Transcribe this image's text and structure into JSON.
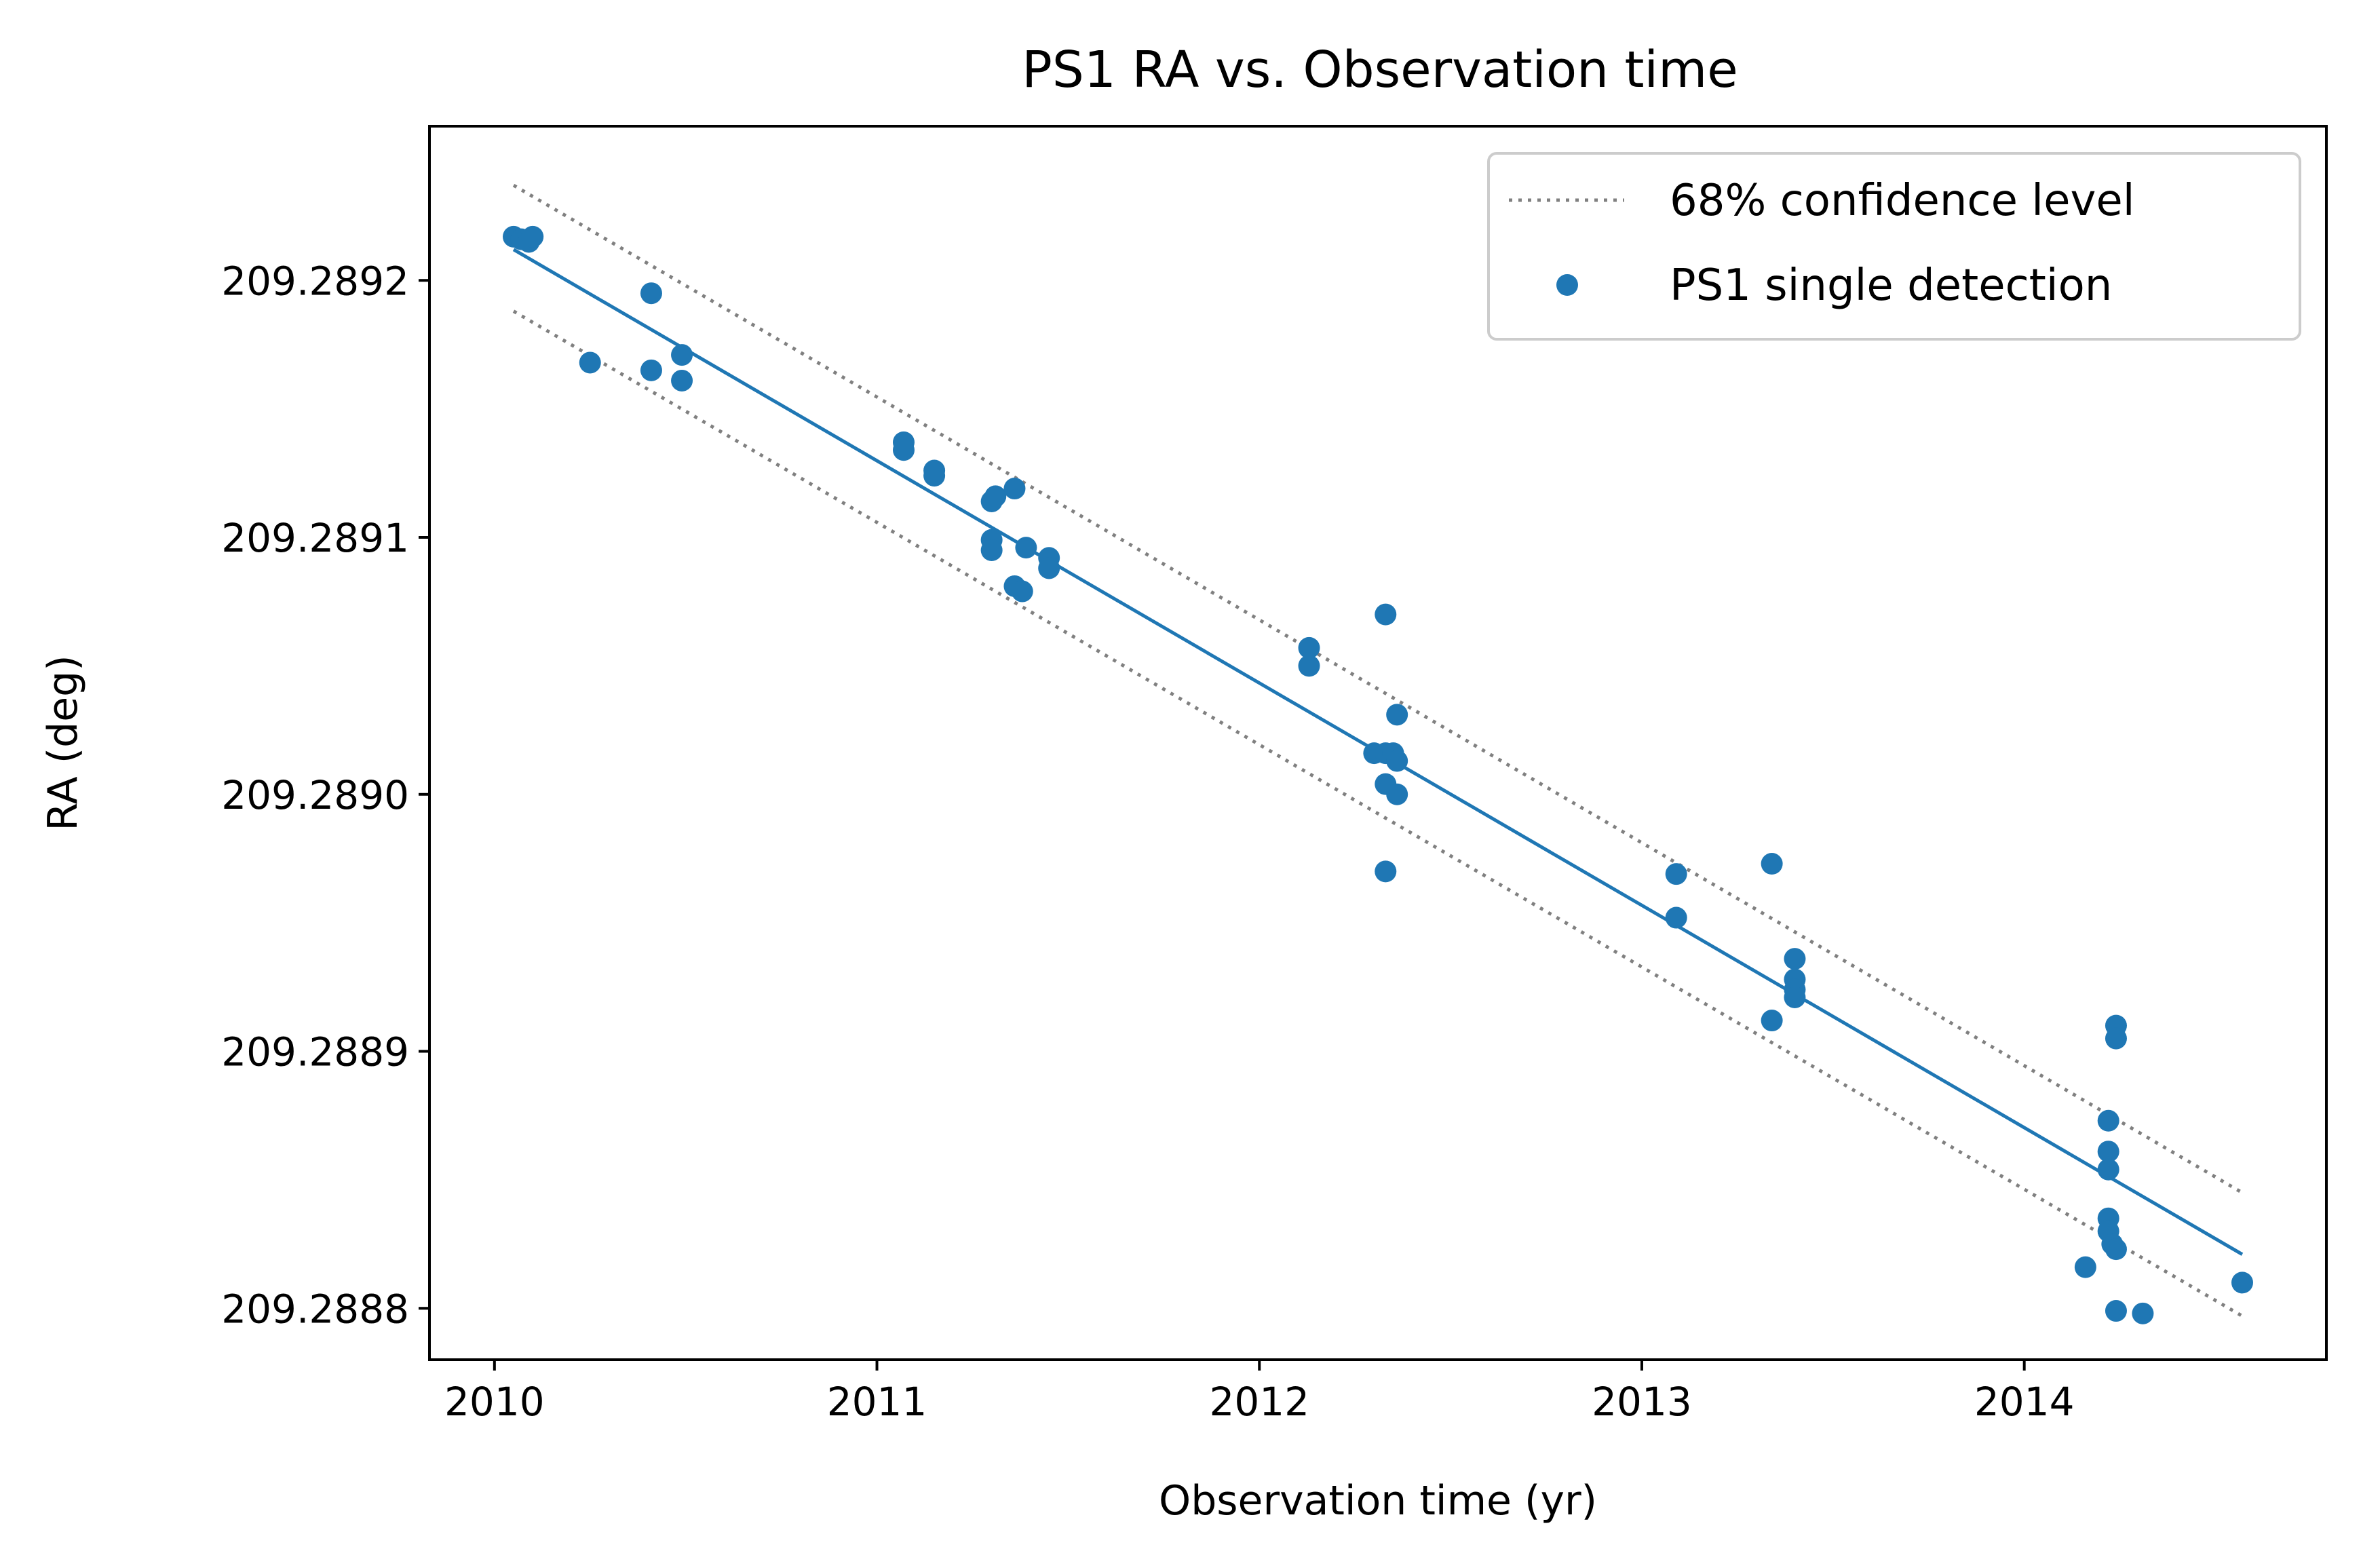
{
  "chart_data": {
    "type": "scatter",
    "title": "PS1 RA vs. Observation time",
    "xlabel": "Observation time (yr)",
    "ylabel": "RA (deg)",
    "xlim": [
      2009.83,
      2014.79
    ],
    "ylim": [
      209.28878,
      209.28926
    ],
    "xticks": [
      2010,
      2011,
      2012,
      2013,
      2014
    ],
    "xtick_labels": [
      "2010",
      "2011",
      "2012",
      "2013",
      "2014"
    ],
    "yticks": [
      209.2888,
      209.2889,
      209.289,
      209.2891,
      209.2892
    ],
    "ytick_labels": [
      "209.2888",
      "209.2889",
      "209.2890",
      "209.2891",
      "209.2892"
    ],
    "grid": false,
    "legend_position": "upper right",
    "colors": {
      "points": "#1f77b4",
      "fit": "#1f77b4",
      "confidence": "#808080"
    },
    "legend": [
      {
        "label": "68% confidence level",
        "style": "dotted-line",
        "color": "#808080"
      },
      {
        "label": "PS1 single detection",
        "style": "marker",
        "color": "#1f77b4"
      }
    ],
    "fit_line": {
      "x": [
        2010.05,
        2014.57
      ],
      "y": [
        209.289212,
        209.288821
      ]
    },
    "confidence_upper": {
      "x": [
        2010.05,
        2014.57
      ],
      "y": [
        209.289237,
        209.288845
      ]
    },
    "confidence_lower": {
      "x": [
        2010.05,
        2014.57
      ],
      "y": [
        209.289188,
        209.288797
      ]
    },
    "series": [
      {
        "name": "PS1 single detection",
        "x": [
          2010.05,
          2010.07,
          2010.09,
          2010.1,
          2010.25,
          2010.41,
          2010.41,
          2010.49,
          2010.49,
          2011.07,
          2011.07,
          2011.15,
          2011.15,
          2011.3,
          2011.31,
          2011.36,
          2011.3,
          2011.3,
          2011.39,
          2011.45,
          2011.45,
          2011.36,
          2011.38,
          2012.13,
          2012.13,
          2012.33,
          2012.36,
          2012.3,
          2012.33,
          2012.35,
          2012.36,
          2012.33,
          2012.36,
          2012.33,
          2013.09,
          2013.09,
          2013.34,
          2013.34,
          2013.4,
          2013.4,
          2013.4,
          2013.4,
          2014.24,
          2014.24,
          2014.22,
          2014.22,
          2014.22,
          2014.22,
          2014.22,
          2014.23,
          2014.24,
          2014.16,
          2014.24,
          2014.31,
          2014.57
        ],
        "y": [
          209.289217,
          209.289216,
          209.289215,
          209.289217,
          209.289168,
          209.289195,
          209.289165,
          209.289171,
          209.289161,
          209.289137,
          209.289134,
          209.289126,
          209.289124,
          209.289114,
          209.289116,
          209.289119,
          209.289099,
          209.289095,
          209.289096,
          209.289092,
          209.289088,
          209.289081,
          209.289079,
          209.289057,
          209.28905,
          209.28907,
          209.289031,
          209.289016,
          209.289016,
          209.289016,
          209.289013,
          209.289004,
          209.289,
          209.28897,
          209.288969,
          209.288952,
          209.288973,
          209.288912,
          209.288936,
          209.288928,
          209.288924,
          209.288921,
          209.28891,
          209.288905,
          209.288873,
          209.288861,
          209.288854,
          209.288835,
          209.28883,
          209.288825,
          209.288823,
          209.288816,
          209.288799,
          209.288798,
          209.28881
        ]
      }
    ]
  }
}
